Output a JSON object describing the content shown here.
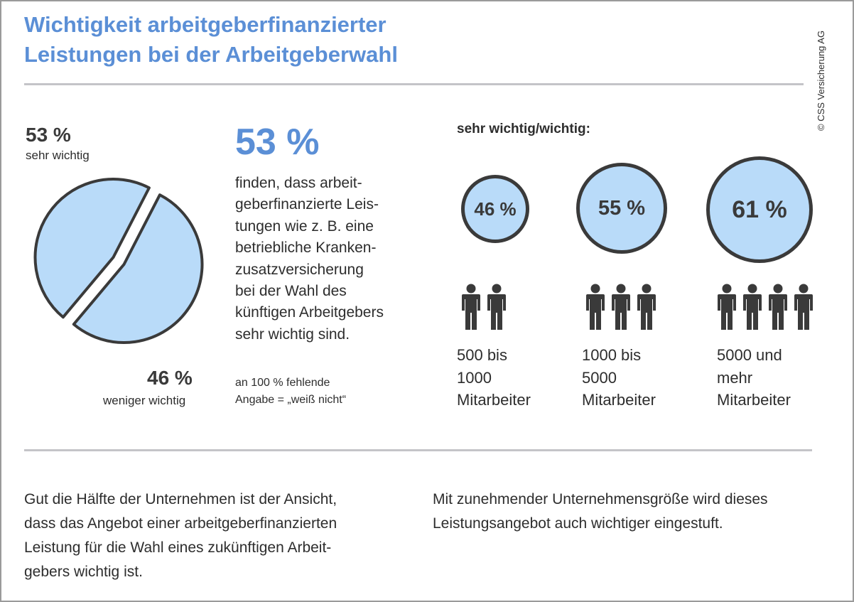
{
  "title": {
    "line1": "Wichtigkeit arbeitgeberfinanzierter",
    "line2": "Leistungen bei der Arbeitgeberwahl"
  },
  "copyright": "© CSS Versicherung AG",
  "chart_data": [
    {
      "type": "pie",
      "slices": [
        {
          "label": "sehr wichtig",
          "value": 53,
          "value_label": "53 %"
        },
        {
          "label": "weniger wichtig",
          "value": 46,
          "value_label": "46 %"
        }
      ],
      "colors": {
        "fill": "#b9dbf9",
        "stroke": "#3a3a3a"
      }
    },
    {
      "type": "bubble",
      "title": "sehr wichtig/wichtig:",
      "categories": [
        "500 bis 1000 Mitarbeiter",
        "1000 bis 5000 Mitarbeiter",
        "5000 und mehr Mitarbeiter"
      ],
      "values": [
        46,
        55,
        61
      ],
      "value_labels": [
        "46 %",
        "55 %",
        "61 %"
      ],
      "icon_counts": [
        2,
        3,
        4
      ],
      "colors": {
        "fill": "#b9dbf9",
        "stroke": "#3a3a3a",
        "icon": "#3a3a3a"
      }
    }
  ],
  "statement": {
    "big_value": "53 %",
    "lines": [
      "finden, dass arbeit-",
      "geberfinanzierte Leis-",
      "tungen wie z. B. eine",
      "betriebliche Kranken-",
      "zusatzversicherung",
      "bei der Wahl des",
      "künftigen Arbeitgebers",
      "sehr wichtig sind."
    ],
    "footnote_lines": [
      "an 100 % fehlende",
      "Angabe = „weiß nicht“"
    ]
  },
  "groups": [
    {
      "lines": [
        "500 bis",
        "1000",
        "Mitarbeiter"
      ]
    },
    {
      "lines": [
        "1000 bis",
        "5000",
        "Mitarbeiter"
      ]
    },
    {
      "lines": [
        "5000 und",
        "mehr",
        "Mitarbeiter"
      ]
    }
  ],
  "summary": {
    "left": [
      "Gut die Hälfte der Unternehmen ist der Ansicht,",
      "dass das Angebot einer arbeitgeberfinanzierten",
      "Leistung für die Wahl eines zukünftigen Arbeit-",
      "gebers wichtig ist."
    ],
    "right": [
      "Mit zunehmender Unternehmensgröße wird dieses",
      "Leistungsangebot auch wichtiger eingestuft."
    ]
  },
  "colors": {
    "accent": "#5b8fd6",
    "text": "#2d2d2d",
    "rule": "#c4c4c8"
  }
}
